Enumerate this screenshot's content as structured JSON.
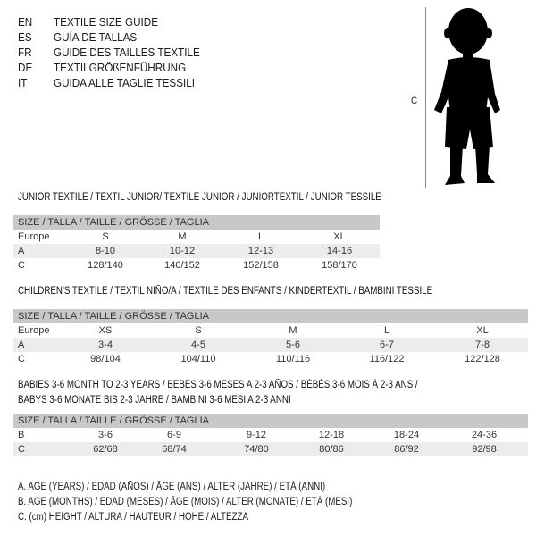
{
  "languages": [
    {
      "code": "EN",
      "title": "TEXTILE SIZE GUIDE"
    },
    {
      "code": "ES",
      "title": "GUÍA DE TALLAS"
    },
    {
      "code": "FR",
      "title": "GUIDE DES TAILLES TEXTILE"
    },
    {
      "code": "DE",
      "title": "TEXTILGRÖßENFÜHRUNG"
    },
    {
      "code": "IT",
      "title": "GUIDA ALLE TAGLIE TESSILI"
    }
  ],
  "figure": {
    "measure_label": "C"
  },
  "size_header": "SIZE / TALLA / TAILLE / GRÖSSE / TAGLIA",
  "junior": {
    "heading": "JUNIOR TEXTILE / TEXTIL JUNIOR/ TEXTILE JUNIOR / JUNIORTEXTIL / JUNIOR TESSILE",
    "rows": [
      {
        "label": "Europe",
        "values": [
          "S",
          "M",
          "L",
          "XL"
        ]
      },
      {
        "label": "A",
        "values": [
          "8-10",
          "10-12",
          "12-13",
          "14-16"
        ]
      },
      {
        "label": "C",
        "values": [
          "128/140",
          "140/152",
          "152/158",
          "158/170"
        ]
      }
    ]
  },
  "children": {
    "heading": "CHILDREN'S TEXTILE / TEXTIL NIÑO/A / TEXTILE DES ENFANTS / KINDERTEXTIL / BAMBINI TESSILE",
    "rows": [
      {
        "label": "Europe",
        "values": [
          "XS",
          "S",
          "M",
          "L",
          "XL"
        ]
      },
      {
        "label": "A",
        "values": [
          "3-4",
          "4-5",
          "5-6",
          "6-7",
          "7-8"
        ]
      },
      {
        "label": "C",
        "values": [
          "98/104",
          "104/110",
          "110/116",
          "116/122",
          "122/128"
        ]
      }
    ]
  },
  "babies": {
    "heading_1": "BABIES 3-6 MONTH TO 2-3 YEARS / BEBÉS 3-6 MESES A 2-3 AÑOS / BÉBÉS 3-6 MOIS À 2-3 ANS /",
    "heading_2": "BABYS 3-6 MONATE BIS 2-3 JAHRE / BAMBINI 3-6 MESI A 2-3 ANNI",
    "rows": [
      {
        "label": "B",
        "values": [
          "3-6",
          "6-9",
          "9-12",
          "12-18",
          "18-24",
          "24-36"
        ]
      },
      {
        "label": "C",
        "values": [
          "62/68",
          "68/74",
          "74/80",
          "80/86",
          "86/92",
          "92/98"
        ]
      }
    ]
  },
  "legend": [
    "A. AGE (YEARS) / EDAD (AÑOS) / ÂGE (ANS) / ALTER (JAHRE) / ETÀ (ANNI)",
    "B. AGE (MONTHS) / EDAD (MESES) / ÂGE (MOIS) / ALTER (MONATE) / ETÀ (MESI)",
    "C. (cm) HEIGHT / ALTURA / HAUTEUR / HÖHE / ALTEZZA"
  ]
}
